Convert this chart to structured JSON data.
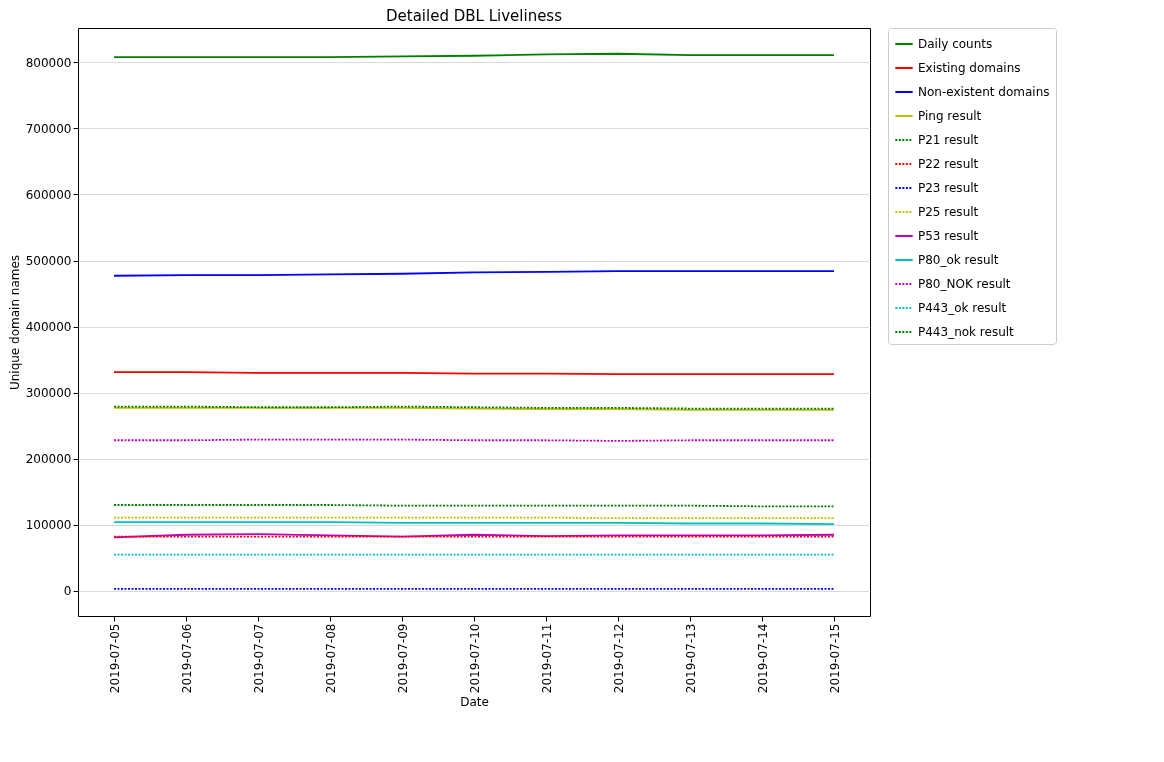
{
  "chart_data": {
    "type": "line",
    "title": "Detailed DBL Liveliness",
    "xlabel": "Date",
    "ylabel": "Unique domain names",
    "x": [
      "2019-07-05",
      "2019-07-06",
      "2019-07-07",
      "2019-07-08",
      "2019-07-09",
      "2019-07-10",
      "2019-07-11",
      "2019-07-12",
      "2019-07-13",
      "2019-07-14",
      "2019-07-15"
    ],
    "xlim": [
      "2019-07-04T12:00",
      "2019-07-15T12:00"
    ],
    "xticks": [
      "2019-07-05",
      "2019-07-06",
      "2019-07-07",
      "2019-07-08",
      "2019-07-09",
      "2019-07-10",
      "2019-07-11",
      "2019-07-12",
      "2019-07-13",
      "2019-07-14",
      "2019-07-15"
    ],
    "ylim": [
      -38000,
      852000
    ],
    "yticks": [
      0,
      100000,
      200000,
      300000,
      400000,
      500000,
      600000,
      700000,
      800000
    ],
    "grid": "y",
    "legend": "right",
    "marker": "none",
    "series": [
      {
        "name": "Daily counts",
        "color": "#008000",
        "line_style": "solid",
        "values": [
          808000,
          808000,
          808000,
          808000,
          809000,
          810000,
          812000,
          813000,
          811000,
          811000,
          811000
        ]
      },
      {
        "name": "Existing domains",
        "color": "#ff0000",
        "line_style": "solid",
        "values": [
          331000,
          331000,
          330000,
          330000,
          330000,
          329000,
          329000,
          328000,
          328000,
          328000,
          328000
        ]
      },
      {
        "name": "Non-existent domains",
        "color": "#0000ff",
        "line_style": "solid",
        "values": [
          477000,
          478000,
          478000,
          479000,
          480000,
          482000,
          483000,
          484000,
          484000,
          484000,
          484000
        ]
      },
      {
        "name": "Ping result",
        "color": "#bfbf00",
        "line_style": "solid",
        "values": [
          277000,
          277000,
          277000,
          277000,
          277000,
          276000,
          275000,
          275000,
          274000,
          274000,
          274000
        ]
      },
      {
        "name": "P21 result",
        "color": "#008000",
        "line_style": "dotted",
        "values": [
          130000,
          130000,
          130000,
          130000,
          129000,
          129000,
          129000,
          129000,
          129000,
          128000,
          128000
        ]
      },
      {
        "name": "P22 result",
        "color": "#ff0000",
        "line_style": "dotted",
        "values": [
          82000,
          82000,
          82000,
          82000,
          82000,
          82000,
          82000,
          82000,
          82000,
          82000,
          82000
        ]
      },
      {
        "name": "P23 result",
        "color": "#0000ff",
        "line_style": "dotted",
        "values": [
          3000,
          3000,
          3000,
          3000,
          3000,
          3000,
          3000,
          3000,
          3000,
          3000,
          3000
        ]
      },
      {
        "name": "P25 result",
        "color": "#bfbf00",
        "line_style": "dotted",
        "values": [
          111000,
          111000,
          111000,
          111000,
          111000,
          111000,
          111000,
          110000,
          110000,
          110000,
          110000
        ]
      },
      {
        "name": "P53 result",
        "color": "#bf00bf",
        "line_style": "solid",
        "values": [
          81000,
          85000,
          86000,
          84000,
          82000,
          85000,
          83000,
          84000,
          84000,
          84000,
          85000
        ]
      },
      {
        "name": "P80_ok result",
        "color": "#00bfbf",
        "line_style": "solid",
        "values": [
          104000,
          104000,
          104000,
          104000,
          103000,
          103000,
          103000,
          103000,
          102000,
          102000,
          101000
        ]
      },
      {
        "name": "P80_NOK result",
        "color": "#bf00bf",
        "line_style": "dotted",
        "values": [
          228000,
          228000,
          229000,
          229000,
          229000,
          228000,
          228000,
          227000,
          228000,
          228000,
          228000
        ]
      },
      {
        "name": "P443_ok result",
        "color": "#00bfbf",
        "line_style": "dotted",
        "values": [
          55000,
          55000,
          55000,
          55000,
          55000,
          55000,
          55000,
          55000,
          55000,
          55000,
          55000
        ]
      },
      {
        "name": "P443_nok result",
        "color": "#008000",
        "line_style": "dotted",
        "values": [
          279000,
          279000,
          278000,
          278000,
          279000,
          278000,
          277000,
          277000,
          276000,
          276000,
          276000
        ]
      }
    ]
  }
}
